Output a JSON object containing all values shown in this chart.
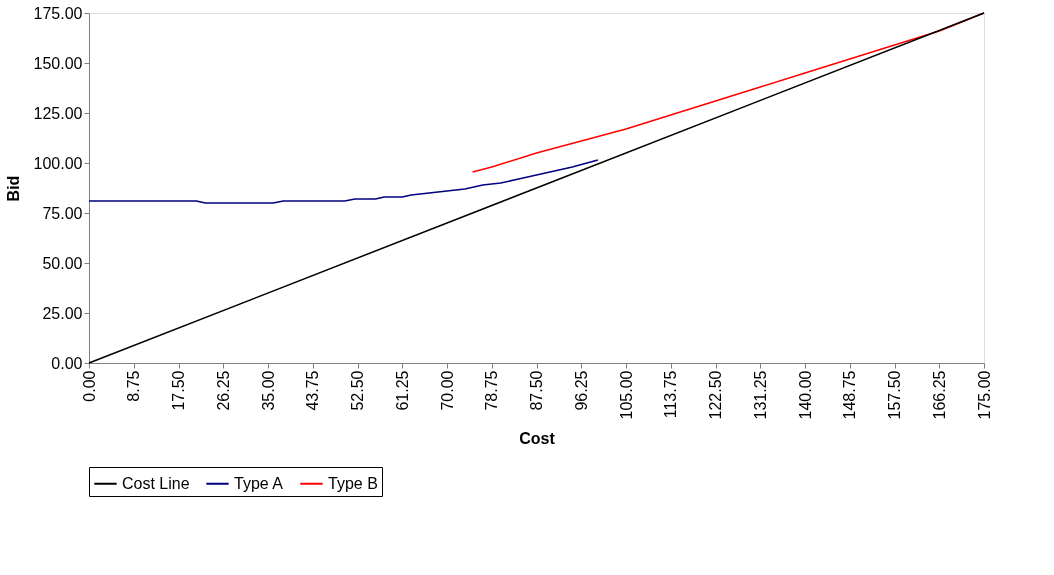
{
  "chart_data": {
    "type": "line",
    "xlabel": "Cost",
    "ylabel": "Bid",
    "xlim": [
      0,
      175
    ],
    "ylim": [
      0,
      175
    ],
    "xticks": [
      {
        "value": 0,
        "label": "0.00"
      },
      {
        "value": 8.75,
        "label": "8.75"
      },
      {
        "value": 17.5,
        "label": "17.50"
      },
      {
        "value": 26.25,
        "label": "26.25"
      },
      {
        "value": 35,
        "label": "35.00"
      },
      {
        "value": 43.75,
        "label": "43.75"
      },
      {
        "value": 52.5,
        "label": "52.50"
      },
      {
        "value": 61.25,
        "label": "61.25"
      },
      {
        "value": 70,
        "label": "70.00"
      },
      {
        "value": 78.75,
        "label": "78.75"
      },
      {
        "value": 87.5,
        "label": "87.50"
      },
      {
        "value": 96.25,
        "label": "96.25"
      },
      {
        "value": 105,
        "label": "105.00"
      },
      {
        "value": 113.75,
        "label": "113.75"
      },
      {
        "value": 122.5,
        "label": "122.50"
      },
      {
        "value": 131.25,
        "label": "131.25"
      },
      {
        "value": 140,
        "label": "140.00"
      },
      {
        "value": 148.75,
        "label": "148.75"
      },
      {
        "value": 157.5,
        "label": "157.50"
      },
      {
        "value": 166.25,
        "label": "166.25"
      },
      {
        "value": 175,
        "label": "175.00"
      }
    ],
    "yticks": [
      {
        "value": 0,
        "label": "0.00"
      },
      {
        "value": 25,
        "label": "25.00"
      },
      {
        "value": 50,
        "label": "50.00"
      },
      {
        "value": 75,
        "label": "75.00"
      },
      {
        "value": 100,
        "label": "100.00"
      },
      {
        "value": 125,
        "label": "125.00"
      },
      {
        "value": 150,
        "label": "150.00"
      },
      {
        "value": 175,
        "label": "175.00"
      }
    ],
    "grid": false,
    "legend": "bottom",
    "marker": "none",
    "line_style": "solid",
    "series": [
      {
        "name": "Cost Line",
        "color": "#000000",
        "x": [
          0,
          175
        ],
        "values": [
          0,
          175
        ]
      },
      {
        "name": "Type A",
        "color": "#000080",
        "x": [
          0,
          21,
          22.75,
          36,
          38,
          50,
          52,
          56,
          57.75,
          61.25,
          63,
          66.5,
          70,
          73.5,
          77,
          80.5,
          84,
          87.5,
          91,
          94.5,
          99.5
        ],
        "values": [
          81,
          81,
          80,
          80,
          81,
          81,
          82,
          82,
          83,
          83,
          84,
          85,
          86,
          87,
          89,
          90,
          92,
          94,
          96,
          98,
          101.5
        ]
      },
      {
        "name": "Type B",
        "color": "#ff0000",
        "x": [
          75,
          78.75,
          87.5,
          96.25,
          105,
          113.75,
          122.5,
          131.25,
          140,
          148.75,
          157.5,
          166.25,
          175
        ],
        "values": [
          95.5,
          98,
          105,
          111,
          117,
          124,
          131,
          138,
          145,
          152,
          159,
          166,
          175
        ]
      }
    ]
  }
}
